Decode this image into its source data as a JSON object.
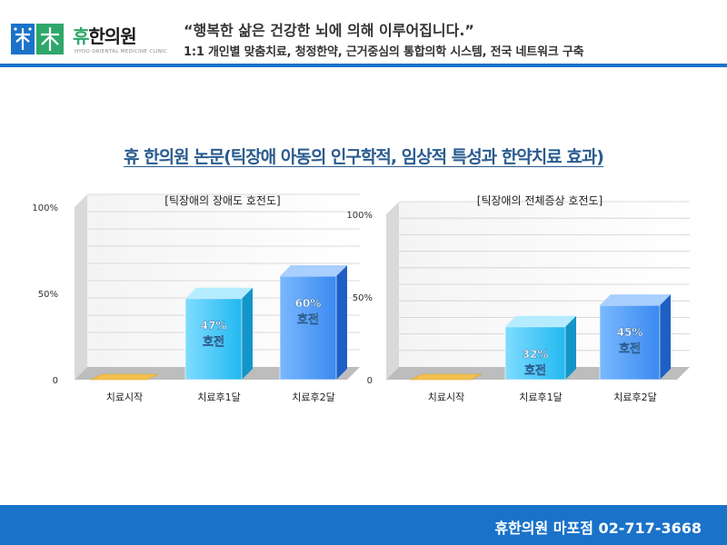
{
  "header": {
    "logo_name_highlight": "휴",
    "logo_name_rest": "한의원",
    "logo_subtitle": "HYOO ORIENTAL MEDICINE CLINIC",
    "slogan_line1": "“행복한 삶은 건강한 뇌에 의해 이루어집니다.”",
    "slogan_line2": "1:1 개인별 맞춤치료, 청정한약, 근거중심의 통합의학 시스템, 전국 네트워크 구축"
  },
  "page_title": "휴 한의원 논문(틱장애 아동의 인구학적, 임상적 특성과 한약치료 효과)",
  "colors": {
    "brand_blue": "#1a73c9",
    "title_blue": "#2a5c8f",
    "logo_green": "#2ea86a",
    "bar_cyan": "#22b8f0",
    "bar_blue": "#3a8af0",
    "baseline_bar": "#f2c14e"
  },
  "chart_data": [
    {
      "type": "bar",
      "title": "[틱장애의 장애도 호전도]",
      "categories": [
        "치료시작",
        "치료후1달",
        "치료후2달"
      ],
      "values": [
        0,
        47,
        60
      ],
      "value_labels": [
        "",
        "47%",
        "60%"
      ],
      "bar_sublabel": "호전",
      "yticks": [
        "0",
        "50%",
        "100%"
      ],
      "ylim": [
        0,
        100
      ],
      "grid": true
    },
    {
      "type": "bar",
      "title": "[틱장애의 전체증상 호전도]",
      "categories": [
        "치료시작",
        "치료후1달",
        "치료후2달"
      ],
      "values": [
        0,
        32,
        45
      ],
      "value_labels": [
        "",
        "32%",
        "45%"
      ],
      "bar_sublabel": "호전",
      "yticks": [
        "0",
        "50%",
        "100%"
      ],
      "ylim": [
        0,
        100
      ],
      "grid": true
    }
  ],
  "footer": {
    "text": "휴한의원 마포점 02-717-3668"
  }
}
